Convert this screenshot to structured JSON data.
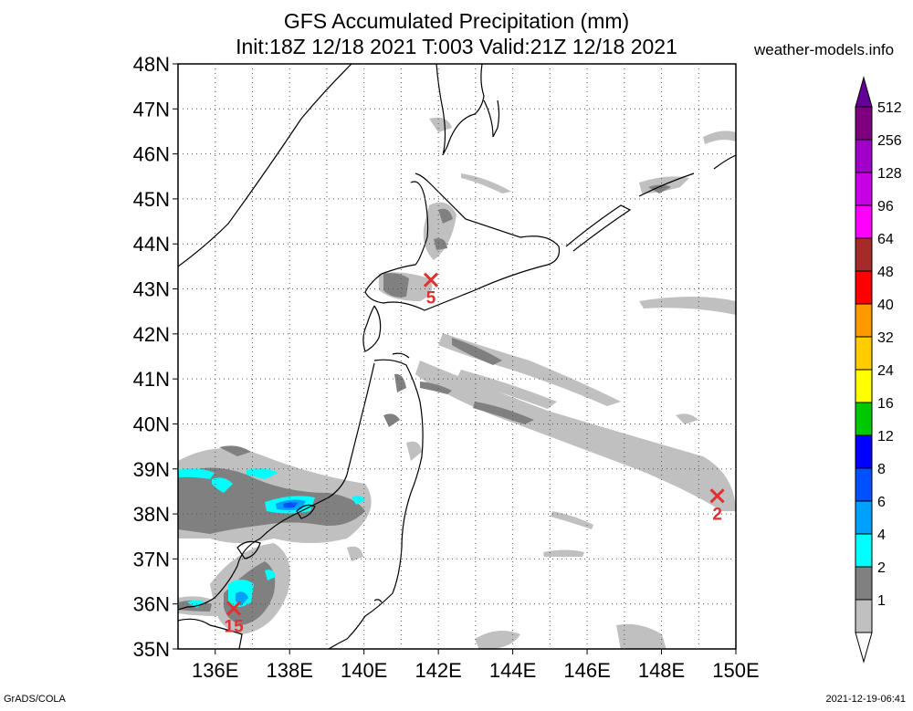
{
  "header": {
    "title": "GFS Accumulated Precipitation (mm)",
    "subtitle": "Init:18Z 12/18 2021 T:003 Valid:21Z 12/18 2021",
    "site": "weather-models.info"
  },
  "footer": {
    "left": "GrADS/COLA",
    "right": "2021-12-19-06:41"
  },
  "map": {
    "lon_range": [
      135,
      150
    ],
    "lat_range": [
      35,
      48
    ],
    "lat_ticks": [
      "35N",
      "36N",
      "37N",
      "38N",
      "39N",
      "40N",
      "41N",
      "42N",
      "43N",
      "44N",
      "45N",
      "46N",
      "47N",
      "48N"
    ],
    "lon_ticks": [
      "136E",
      "138E",
      "140E",
      "142E",
      "144E",
      "146E",
      "148E",
      "150E"
    ],
    "grid": true,
    "markers": [
      {
        "label": "5",
        "lon": 141.8,
        "lat": 43.2
      },
      {
        "label": "2",
        "lon": 149.5,
        "lat": 38.4
      },
      {
        "label": "15",
        "lon": 136.5,
        "lat": 35.9
      }
    ]
  },
  "legend": {
    "levels": [
      "512",
      "256",
      "128",
      "96",
      "64",
      "48",
      "40",
      "32",
      "24",
      "16",
      "12",
      "8",
      "6",
      "4",
      "2",
      "1"
    ],
    "colors": [
      "#7f007f",
      "#a000c8",
      "#c800e6",
      "#ff00ff",
      "#a52a2a",
      "#ff0000",
      "#ff9900",
      "#ffcc00",
      "#ffff00",
      "#00c800",
      "#0000ff",
      "#0050ff",
      "#00a0ff",
      "#00ffff",
      "#808080",
      "#c0c0c0"
    ],
    "top_arrow_color": "#640096",
    "bottom_arrow_color": "#ffffff"
  },
  "colors": {
    "light_precip": "#c0c0c0",
    "dark_precip": "#808080",
    "cyan_precip": "#00ffff",
    "blue_precip": "#00a0ff",
    "deep_blue_precip": "#0050ff",
    "marker": "#e03030",
    "coast": "#000000"
  }
}
